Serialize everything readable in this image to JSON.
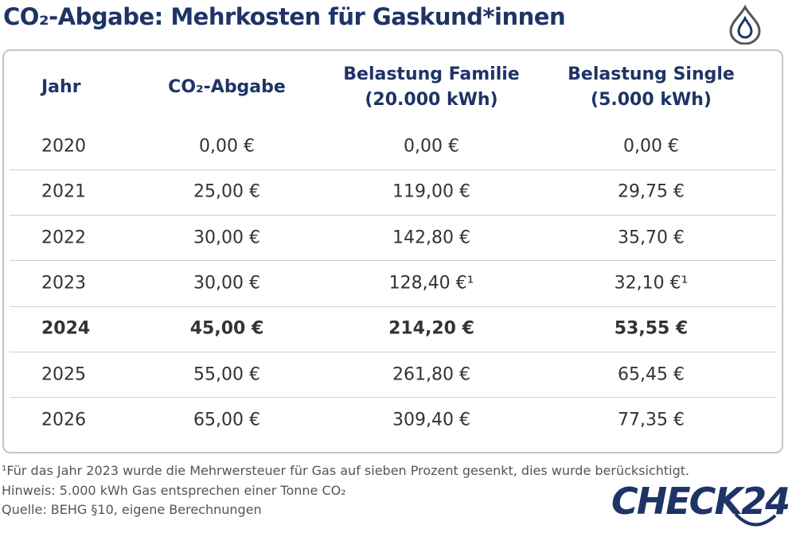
{
  "header": {
    "title": "CO₂-Abgabe: Mehrkosten für Gaskund*innen"
  },
  "table": {
    "columns": [
      "Jahr",
      "CO₂-Abgabe",
      "Belastung Familie (20.000 kWh)",
      "Belastung Single (5.000 kWh)"
    ],
    "rows": [
      [
        "2020",
        "0,00 €",
        "0,00 €",
        "0,00 €"
      ],
      [
        "2021",
        "25,00 €",
        "119,00 €",
        "29,75 €"
      ],
      [
        "2022",
        "30,00 €",
        "142,80 €",
        "35,70 €"
      ],
      [
        "2023",
        "30,00 €",
        "128,40 €¹",
        "32,10 €¹"
      ],
      [
        "2024",
        "45,00 €",
        "214,20 €",
        "53,55 €"
      ],
      [
        "2025",
        "55,00 €",
        "261,80 €",
        "65,45 €"
      ],
      [
        "2026",
        "65,00 €",
        "309,40 €",
        "77,35 €"
      ]
    ]
  },
  "footnotes": [
    "¹Für das Jahr 2023 wurde die Mehrwersteuer für Gas auf sieben Prozent gesenkt, dies wurde berücksichtigt.",
    "Hinweis: 5.000 kWh Gas entsprechen einer Tonne CO₂",
    "Quelle: BEHG §10, eigene Berechnungen"
  ],
  "logo": "CHECK24"
}
